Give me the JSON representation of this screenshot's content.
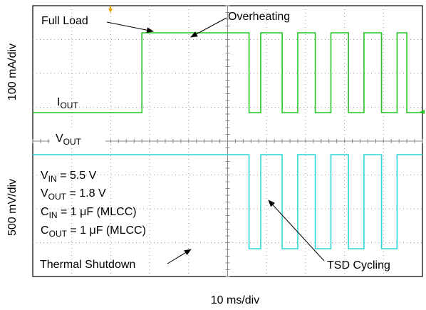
{
  "chart_data": {
    "type": "line",
    "title": "",
    "xlabel": "10 ms/div",
    "x_unit": "ms",
    "xlim": [
      0,
      100
    ],
    "grid": true,
    "grid_divisions": {
      "x": 10,
      "y": 8
    },
    "panels": [
      {
        "name": "I_OUT",
        "ylabel": "100 mA/div",
        "trace_label": {
          "main": "I",
          "sub": "OUT"
        },
        "color": "#22c422",
        "series": [
          {
            "x": 0,
            "y": 0
          },
          {
            "x": 28.0,
            "y": 0
          },
          {
            "x": 28.0,
            "y": 1
          },
          {
            "x": 55.5,
            "y": 1
          },
          {
            "x": 55.5,
            "y": 0
          },
          {
            "x": 58.5,
            "y": 0
          },
          {
            "x": 58.5,
            "y": 1
          },
          {
            "x": 64.0,
            "y": 1
          },
          {
            "x": 64.0,
            "y": 0
          },
          {
            "x": 68.0,
            "y": 0
          },
          {
            "x": 68.0,
            "y": 1
          },
          {
            "x": 72.5,
            "y": 1
          },
          {
            "x": 72.5,
            "y": 0
          },
          {
            "x": 76.5,
            "y": 0
          },
          {
            "x": 76.5,
            "y": 1
          },
          {
            "x": 81.0,
            "y": 1
          },
          {
            "x": 81.0,
            "y": 0
          },
          {
            "x": 85.0,
            "y": 0
          },
          {
            "x": 85.0,
            "y": 1
          },
          {
            "x": 89.5,
            "y": 1
          },
          {
            "x": 89.5,
            "y": 0
          },
          {
            "x": 93.5,
            "y": 0
          },
          {
            "x": 93.5,
            "y": 1
          },
          {
            "x": 96.0,
            "y": 1
          },
          {
            "x": 96.0,
            "y": 0
          },
          {
            "x": 100,
            "y": 0
          }
        ]
      },
      {
        "name": "V_OUT",
        "ylabel": "500 mV/div",
        "trace_label": {
          "main": "V",
          "sub": "OUT"
        },
        "color": "#2fd6d6",
        "series": [
          {
            "x": 0,
            "y": 1.8
          },
          {
            "x": 55.5,
            "y": 1.8
          },
          {
            "x": 55.5,
            "y": 0
          },
          {
            "x": 58.5,
            "y": 0
          },
          {
            "x": 58.5,
            "y": 1.8
          },
          {
            "x": 64.0,
            "y": 1.8
          },
          {
            "x": 64.0,
            "y": 0
          },
          {
            "x": 68.0,
            "y": 0
          },
          {
            "x": 68.0,
            "y": 1.8
          },
          {
            "x": 72.5,
            "y": 1.8
          },
          {
            "x": 72.5,
            "y": 0
          },
          {
            "x": 76.5,
            "y": 0
          },
          {
            "x": 76.5,
            "y": 1.8
          },
          {
            "x": 81.0,
            "y": 1.8
          },
          {
            "x": 81.0,
            "y": 0
          },
          {
            "x": 85.0,
            "y": 0
          },
          {
            "x": 85.0,
            "y": 1.8
          },
          {
            "x": 89.5,
            "y": 1.8
          },
          {
            "x": 89.5,
            "y": 0
          },
          {
            "x": 93.5,
            "y": 0
          },
          {
            "x": 93.5,
            "y": 1.8
          },
          {
            "x": 100,
            "y": 1.8
          }
        ]
      }
    ],
    "conditions": [
      {
        "main": "V",
        "sub": "IN",
        "rest": " = 5.5 V"
      },
      {
        "main": "V",
        "sub": "OUT",
        "rest": " = 1.8 V"
      },
      {
        "main": "C",
        "sub": "IN",
        "rest": " = 1 μF (MLCC)"
      },
      {
        "main": "C",
        "sub": "OUT",
        "rest": " = 1 μF (MLCC)"
      }
    ],
    "annotations": {
      "full_load": "Full Load",
      "overheating": "Overheating",
      "thermal_shutdown": "Thermal Shutdown",
      "tsd_cycling": "TSD Cycling"
    },
    "trigger_marker_color": "#e8a400"
  }
}
